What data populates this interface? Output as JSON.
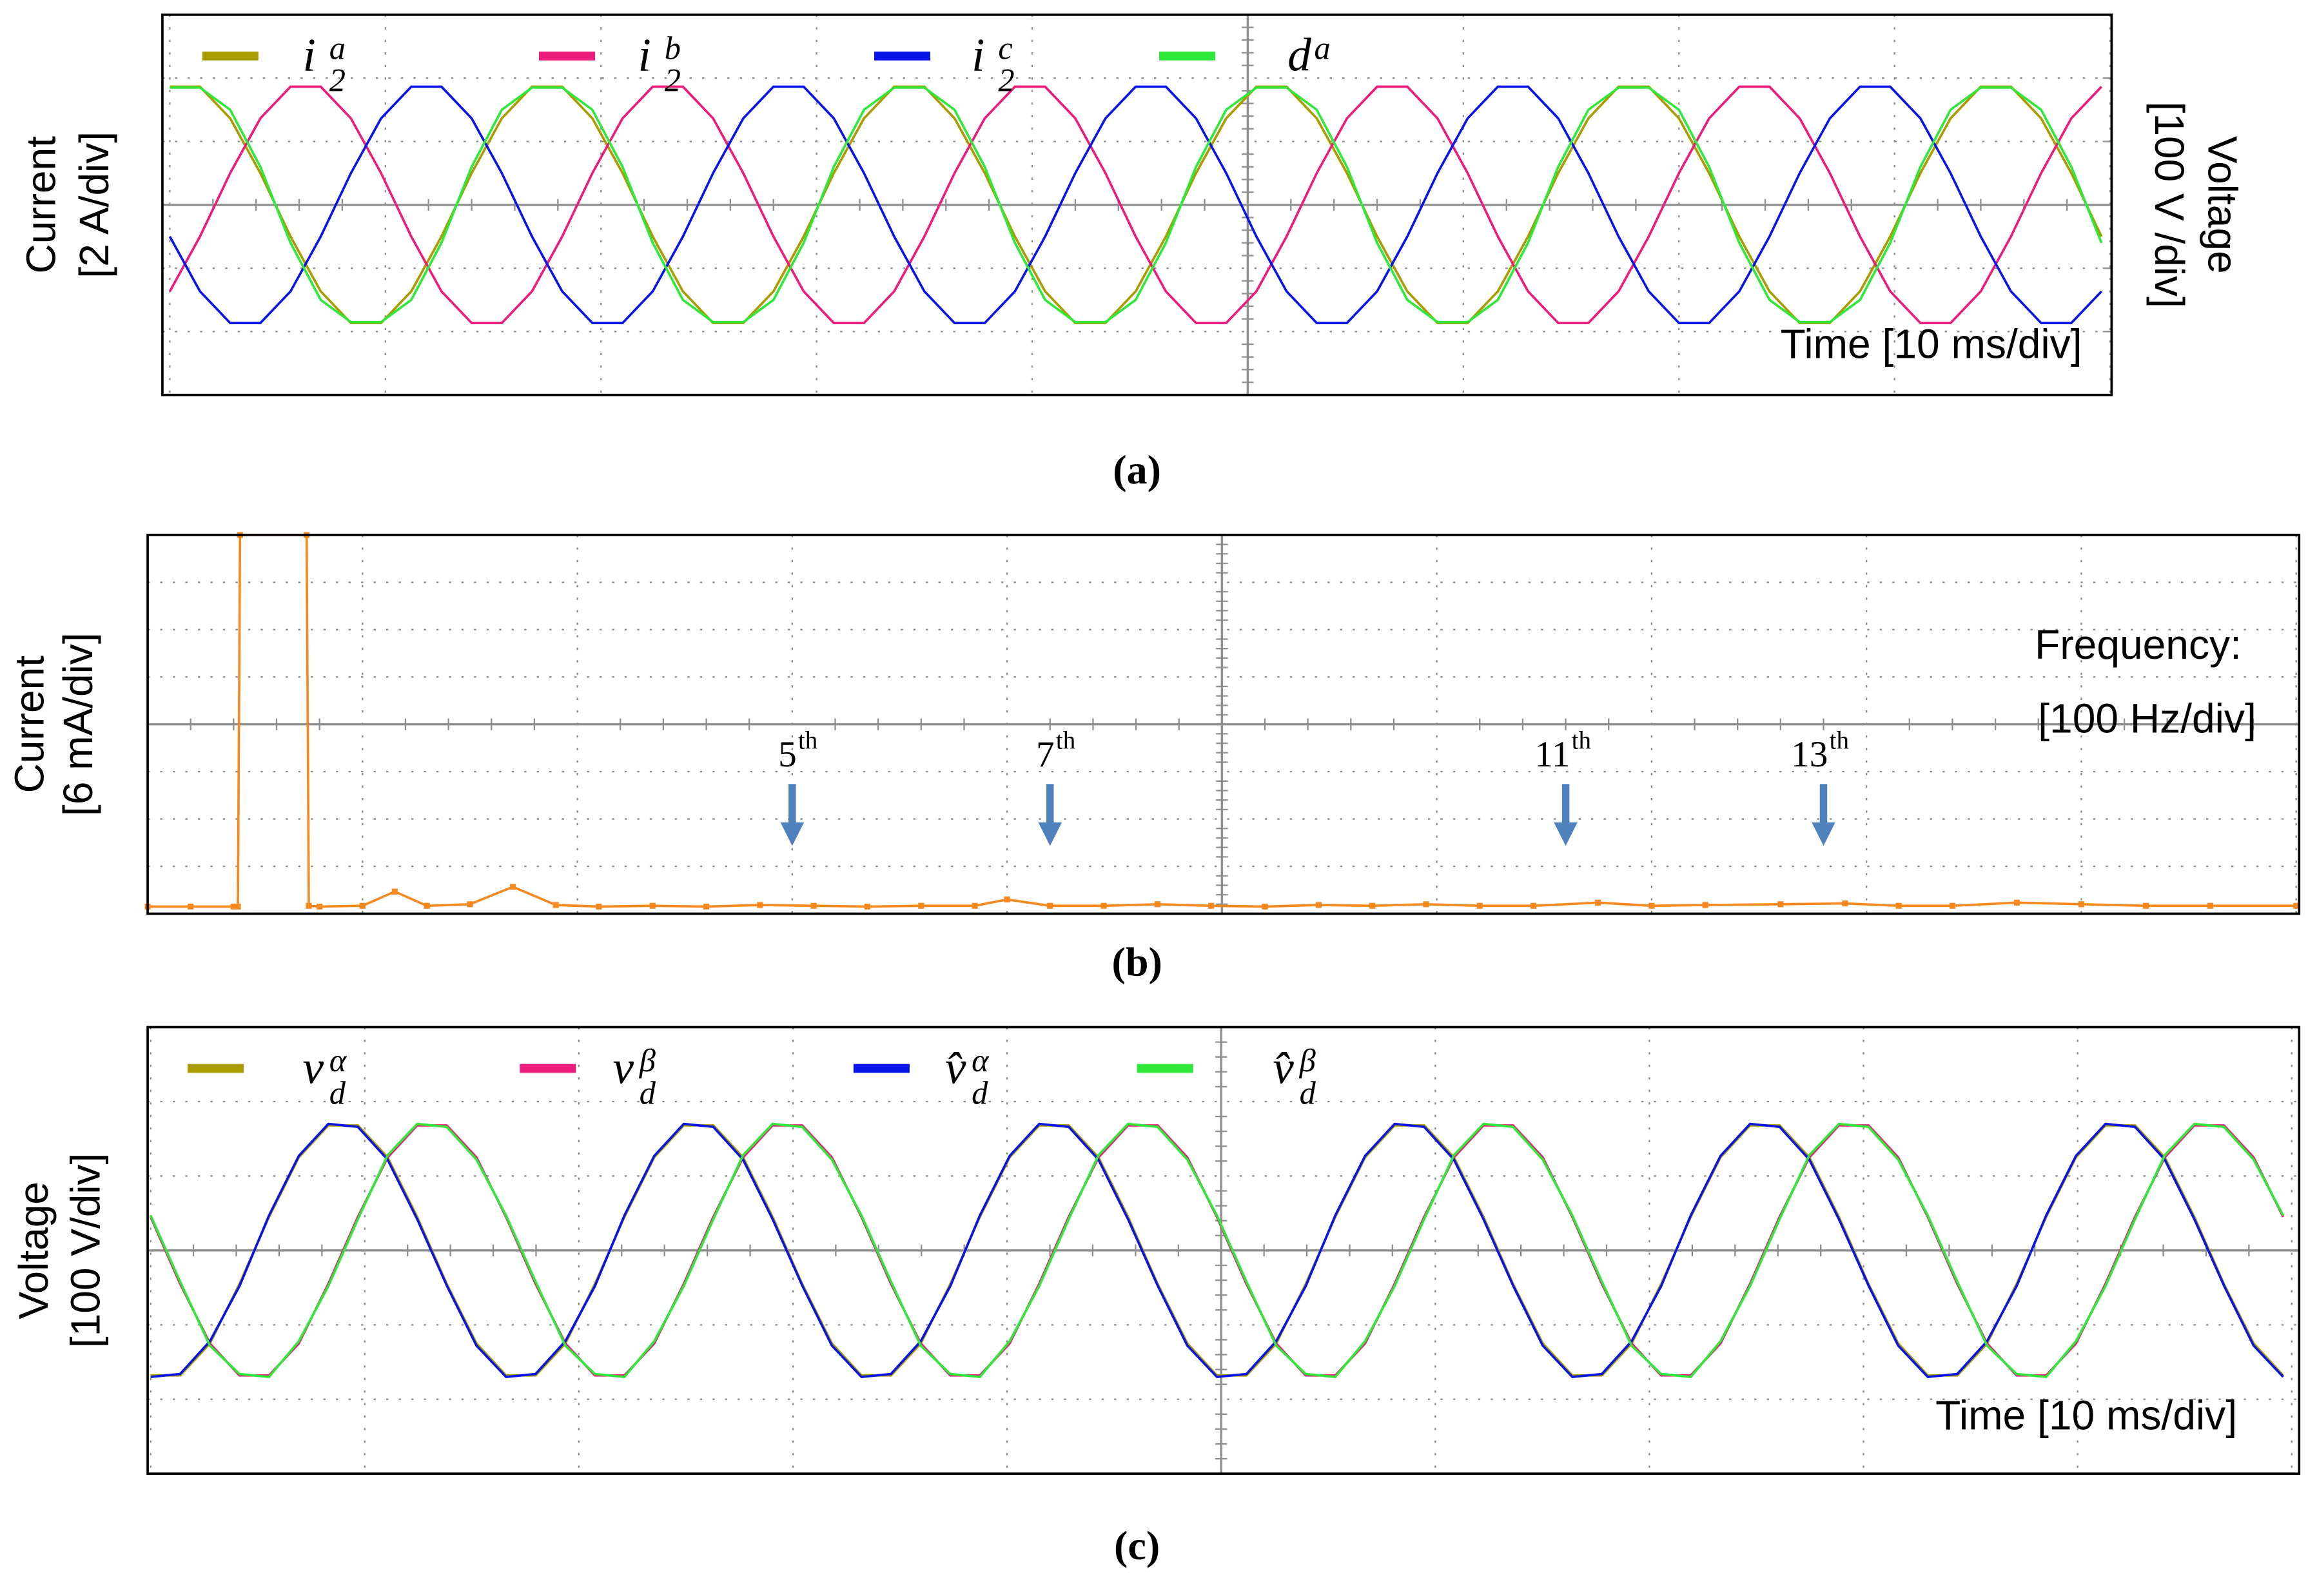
{
  "chart_data": [
    {
      "type": "line",
      "caption": "(a)",
      "ylabel": [
        "Current",
        "[2 A/div]"
      ],
      "y2label": [
        "Voltage",
        "[100 V /div]"
      ],
      "xlabel": "Time [10 ms/div]",
      "grid": true,
      "xlim": [
        0,
        90
      ],
      "xticks": [
        0,
        10,
        20,
        30,
        40,
        50,
        60,
        70,
        80,
        90
      ],
      "ylim": [
        -6,
        6
      ],
      "yticks": [
        -6,
        -4,
        -2,
        0,
        2,
        4,
        6
      ],
      "y2lim": [
        -300,
        300
      ],
      "y2ticks": [
        -300,
        -200,
        -100,
        0,
        100,
        200,
        300
      ],
      "x": [
        0,
        1.4,
        2.8,
        4.2,
        5.6,
        7,
        8.4,
        9.8,
        11.2,
        12.6,
        14,
        15.4,
        16.8,
        18.2,
        19.6,
        21,
        22.4,
        23.8,
        25.2,
        26.6,
        28,
        29.4,
        30.8,
        32.2,
        33.6,
        35,
        36.4,
        37.8,
        39.2,
        40.6,
        42,
        43.4,
        44.8,
        46.2,
        47.6,
        49,
        50.4,
        51.8,
        53.2,
        54.6,
        56,
        57.4,
        58.8,
        60.2,
        61.6,
        63,
        64.4,
        65.8,
        67.2,
        68.6,
        70,
        71.4,
        72.8,
        74.2,
        75.6,
        77,
        78.4,
        79.8,
        81.2,
        82.6,
        84,
        85.4,
        86.8,
        88.2,
        89.6
      ],
      "series": [
        {
          "name": "i",
          "sub": "2",
          "sup": "a",
          "color": "#a99b00",
          "values": [
            3.73,
            3.73,
            2.73,
            1,
            -1,
            -2.73,
            -3.73,
            -3.73,
            -2.73,
            -1,
            1,
            2.73,
            3.73,
            3.73,
            2.73,
            1,
            -1,
            -2.73,
            -3.73,
            -3.73,
            -2.73,
            -1,
            1,
            2.73,
            3.73,
            3.73,
            2.73,
            1,
            -1,
            -2.73,
            -3.73,
            -3.73,
            -2.73,
            -1,
            1,
            2.73,
            3.73,
            3.73,
            2.73,
            1,
            -1,
            -2.73,
            -3.73,
            -3.73,
            -2.73,
            -1,
            1,
            2.73,
            3.73,
            3.73,
            2.73,
            1,
            -1,
            -2.73,
            -3.73,
            -3.73,
            -2.73,
            -1,
            1,
            2.73,
            3.73,
            3.73,
            2.73,
            1,
            -1
          ]
        },
        {
          "name": "i",
          "sub": "2",
          "sup": "b",
          "color": "#ec1c7c",
          "values": [
            -2.73,
            -1,
            1,
            2.73,
            3.73,
            3.73,
            2.73,
            1,
            -1,
            -2.73,
            -3.73,
            -3.73,
            -2.73,
            -1,
            1,
            2.73,
            3.73,
            3.73,
            2.73,
            1,
            -1,
            -2.73,
            -3.73,
            -3.73,
            -2.73,
            -1,
            1,
            2.73,
            3.73,
            3.73,
            2.73,
            1,
            -1,
            -2.73,
            -3.73,
            -3.73,
            -2.73,
            -1,
            1,
            2.73,
            3.73,
            3.73,
            2.73,
            1,
            -1,
            -2.73,
            -3.73,
            -3.73,
            -2.73,
            -1,
            1,
            2.73,
            3.73,
            3.73,
            2.73,
            1,
            -1,
            -2.73,
            -3.73,
            -3.73,
            -2.73,
            -1,
            1,
            2.73,
            3.73
          ]
        },
        {
          "name": "i",
          "sub": "2",
          "sup": "c",
          "color": "#0a14e6",
          "values": [
            -1,
            -2.73,
            -3.73,
            -3.73,
            -2.73,
            -1,
            1,
            2.73,
            3.73,
            3.73,
            2.73,
            1,
            -1,
            -2.73,
            -3.73,
            -3.73,
            -2.73,
            -1,
            1,
            2.73,
            3.73,
            3.73,
            2.73,
            1,
            -1,
            -2.73,
            -3.73,
            -3.73,
            -2.73,
            -1,
            1,
            2.73,
            3.73,
            3.73,
            2.73,
            1,
            -1,
            -2.73,
            -3.73,
            -3.73,
            -2.73,
            -1,
            1,
            2.73,
            3.73,
            3.73,
            2.73,
            1,
            -1,
            -2.73,
            -3.73,
            -3.73,
            -2.73,
            -1,
            1,
            2.73,
            3.73,
            3.73,
            2.73,
            1,
            -1,
            -2.73,
            -3.73,
            -3.73,
            -2.73
          ]
        },
        {
          "name": "d",
          "sup": "a",
          "color": "#2ee83a",
          "axis": "y2",
          "values": [
            185,
            185,
            150,
            60,
            -60,
            -150,
            -185,
            -185,
            -150,
            -60,
            60,
            150,
            185,
            185,
            150,
            60,
            -60,
            -150,
            -185,
            -185,
            -150,
            -60,
            60,
            150,
            185,
            185,
            150,
            60,
            -60,
            -150,
            -185,
            -185,
            -150,
            -60,
            60,
            150,
            185,
            185,
            150,
            60,
            -60,
            -150,
            -185,
            -185,
            -150,
            -60,
            60,
            150,
            185,
            185,
            150,
            60,
            -60,
            -150,
            -185,
            -185,
            -150,
            -60,
            60,
            150,
            185,
            185,
            150,
            60,
            -60
          ]
        }
      ]
    },
    {
      "type": "spectrum",
      "caption": "(b)",
      "ylabel": [
        "Current",
        "[6 mA/div]"
      ],
      "xlabel": [
        "Frequency:",
        "[100 Hz/div]"
      ],
      "grid": true,
      "color": "#f5891f",
      "xlim": [
        0,
        1000
      ],
      "xticks": [
        0,
        100,
        200,
        300,
        400,
        500,
        600,
        700,
        800,
        900,
        1000
      ],
      "ylim": [
        0,
        48
      ],
      "yticks": [
        0,
        6,
        12,
        18,
        24,
        30,
        36,
        42,
        48
      ],
      "x": [
        0,
        20,
        40,
        42,
        43,
        74,
        75,
        80,
        100,
        115,
        130,
        150,
        170,
        190,
        210,
        235,
        260,
        285,
        310,
        335,
        360,
        385,
        400,
        420,
        445,
        470,
        495,
        520,
        545,
        570,
        595,
        620,
        645,
        675,
        700,
        725,
        760,
        790,
        815,
        840,
        870,
        900,
        930,
        960,
        1000
      ],
      "values": [
        0.9,
        0.9,
        0.9,
        0.9,
        48,
        48,
        1,
        0.9,
        1,
        2.8,
        1,
        1.2,
        3.4,
        1.1,
        0.9,
        1,
        0.9,
        1.1,
        1,
        0.9,
        1,
        1,
        1.8,
        1,
        1,
        1.2,
        1,
        0.9,
        1.1,
        1,
        1.2,
        1,
        1,
        1.4,
        1,
        1.1,
        1.2,
        1.3,
        1,
        1,
        1.4,
        1.2,
        1,
        1,
        1
      ],
      "annotations": [
        {
          "label": "5",
          "suffix": "th",
          "frequency": 300
        },
        {
          "label": "7",
          "suffix": "th",
          "frequency": 420
        },
        {
          "label": "11",
          "suffix": "th",
          "frequency": 660
        },
        {
          "label": "13",
          "suffix": "th",
          "frequency": 780
        }
      ]
    },
    {
      "type": "line",
      "caption": "(c)",
      "ylabel": [
        "Voltage",
        "[100 V/div]"
      ],
      "xlabel": "Time [10 ms/div]",
      "grid": true,
      "xlim": [
        0,
        100
      ],
      "xticks": [
        0,
        10,
        20,
        30,
        40,
        50,
        60,
        70,
        80,
        90,
        100
      ],
      "ylim": [
        -300,
        300
      ],
      "yticks": [
        -300,
        -200,
        -100,
        0,
        100,
        200,
        300
      ],
      "x": [
        0,
        1.38,
        2.77,
        4.15,
        5.53,
        6.92,
        8.3,
        9.68,
        11.07,
        12.45,
        13.83,
        15.22,
        16.6,
        17.98,
        19.37,
        20.75,
        22.13,
        23.52,
        24.9,
        26.28,
        27.67,
        29.05,
        30.43,
        31.82,
        33.2,
        34.58,
        35.97,
        37.35,
        38.73,
        40.12,
        41.5,
        42.88,
        44.27,
        45.65,
        47.03,
        48.42,
        49.8,
        51.18,
        52.57,
        53.95,
        55.33,
        56.72,
        58.1,
        59.48,
        60.87,
        62.25,
        63.63,
        65.02,
        66.4,
        67.78,
        69.17,
        70.55,
        71.93,
        73.32,
        74.7,
        76.08,
        77.47,
        78.85,
        80.23,
        81.62,
        83,
        84.38,
        85.77,
        87.15,
        88.53,
        89.92,
        91.3,
        92.68,
        94.07,
        95.45,
        96.83,
        98.22,
        99.6
      ],
      "series": [
        {
          "name": "v",
          "sub": "d",
          "sup": "α",
          "color": "#a99b00",
          "values": [
            -168,
            -168,
            -125,
            -45,
            45,
            125,
            168,
            168,
            125,
            45,
            -45,
            -125,
            -168,
            -168,
            -125,
            -45,
            45,
            125,
            168,
            168,
            125,
            45,
            -45,
            -125,
            -168,
            -168,
            -125,
            -45,
            45,
            125,
            168,
            168,
            125,
            45,
            -45,
            -125,
            -168,
            -168,
            -125,
            -45,
            45,
            125,
            168,
            168,
            125,
            45,
            -45,
            -125,
            -168,
            -168,
            -125,
            -45,
            45,
            125,
            168,
            168,
            125,
            45,
            -45,
            -125,
            -168,
            -168,
            -125,
            -45,
            45,
            125,
            168,
            168,
            125,
            45,
            -45,
            -125,
            -168
          ]
        },
        {
          "name": "v",
          "sub": "d",
          "sup": "β",
          "color": "#ec1c7c",
          "values": [
            45,
            -45,
            -125,
            -168,
            -168,
            -125,
            -45,
            45,
            125,
            168,
            168,
            125,
            45,
            -45,
            -125,
            -168,
            -168,
            -125,
            -45,
            45,
            125,
            168,
            168,
            125,
            45,
            -45,
            -125,
            -168,
            -168,
            -125,
            -45,
            45,
            125,
            168,
            168,
            125,
            45,
            -45,
            -125,
            -168,
            -168,
            -125,
            -45,
            45,
            125,
            168,
            168,
            125,
            45,
            -45,
            -125,
            -168,
            -168,
            -125,
            -45,
            45,
            125,
            168,
            168,
            125,
            45,
            -45,
            -125,
            -168,
            -168,
            -125,
            -45,
            45,
            125,
            168,
            168,
            125,
            45
          ]
        },
        {
          "name": "v̂",
          "sub": "d",
          "sup": "α",
          "color": "#0a14e6",
          "values": [
            -170,
            -166,
            -122,
            -48,
            47,
            127,
            170,
            166,
            122,
            42,
            -47,
            -128,
            -170,
            -166,
            -122,
            -48,
            47,
            127,
            170,
            166,
            122,
            42,
            -47,
            -128,
            -170,
            -166,
            -122,
            -48,
            47,
            127,
            170,
            166,
            122,
            42,
            -47,
            -128,
            -170,
            -166,
            -122,
            -48,
            47,
            127,
            170,
            166,
            122,
            42,
            -47,
            -128,
            -170,
            -166,
            -122,
            -48,
            47,
            127,
            170,
            166,
            122,
            42,
            -47,
            -128,
            -170,
            -166,
            -122,
            -48,
            47,
            127,
            170,
            166,
            122,
            42,
            -47,
            -128,
            -170
          ]
        },
        {
          "name": "v̂",
          "sub": "d",
          "sup": "β",
          "color": "#2ee83a",
          "values": [
            47,
            -42,
            -128,
            -166,
            -170,
            -122,
            -48,
            42,
            128,
            170,
            166,
            122,
            47,
            -42,
            -128,
            -166,
            -170,
            -122,
            -48,
            42,
            128,
            170,
            166,
            122,
            47,
            -42,
            -128,
            -166,
            -170,
            -122,
            -48,
            42,
            128,
            170,
            166,
            122,
            47,
            -42,
            -128,
            -166,
            -170,
            -122,
            -48,
            42,
            128,
            170,
            166,
            122,
            47,
            -42,
            -128,
            -166,
            -170,
            -122,
            -48,
            42,
            128,
            170,
            166,
            122,
            47,
            -42,
            -128,
            -166,
            -170,
            -122,
            -48,
            42,
            128,
            170,
            166,
            122,
            47
          ]
        }
      ]
    }
  ]
}
